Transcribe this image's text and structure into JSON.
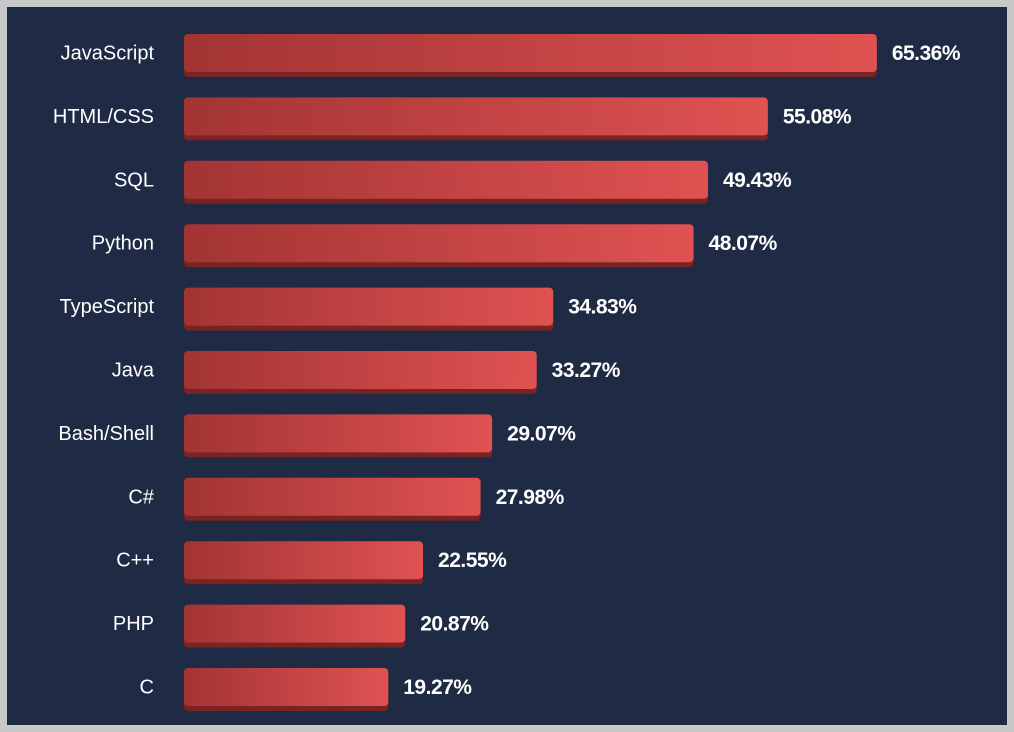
{
  "chart_data": {
    "type": "bar",
    "orientation": "horizontal",
    "categories": [
      "JavaScript",
      "HTML/CSS",
      "SQL",
      "Python",
      "TypeScript",
      "Java",
      "Bash/Shell",
      "C#",
      "C++",
      "PHP",
      "C"
    ],
    "values": [
      65.36,
      55.08,
      49.43,
      48.07,
      34.83,
      33.27,
      29.07,
      27.98,
      22.55,
      20.87,
      19.27
    ],
    "value_labels": [
      "65.36%",
      "55.08%",
      "49.43%",
      "48.07%",
      "34.83%",
      "33.27%",
      "29.07%",
      "27.98%",
      "22.55%",
      "20.87%",
      "19.27%"
    ],
    "unit": "%",
    "grid": false,
    "legend": "none",
    "colors": {
      "background": "#1f2a44",
      "frame": "#c8c8c8",
      "bar_start": "#a33434",
      "bar_end": "#e05252",
      "bar_shadow": "#7a2323",
      "text": "#ffffff"
    }
  }
}
